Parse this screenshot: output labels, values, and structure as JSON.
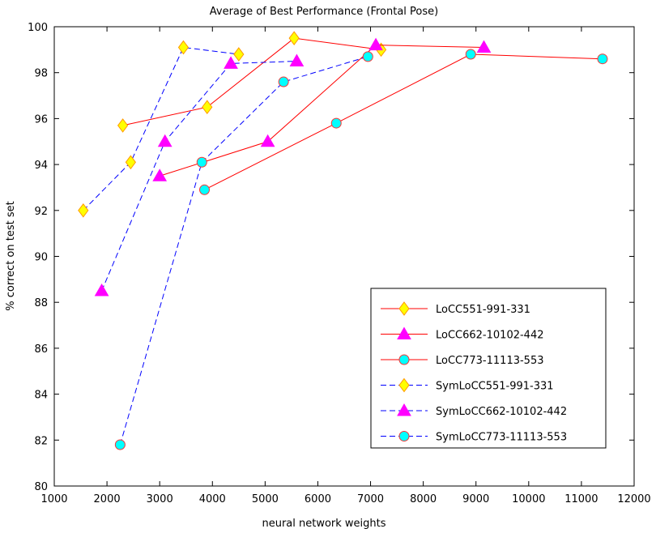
{
  "chart_data": {
    "type": "line",
    "title": "Average of Best Performance (Frontal Pose)",
    "xlabel": "neural network weights",
    "ylabel": "% correct on test set",
    "xlim": [
      1000,
      12000
    ],
    "ylim": [
      80,
      100
    ],
    "xticks": [
      1000,
      2000,
      3000,
      4000,
      5000,
      6000,
      7000,
      8000,
      9000,
      10000,
      11000,
      12000
    ],
    "yticks": [
      80,
      82,
      84,
      86,
      88,
      90,
      92,
      94,
      96,
      98,
      100
    ],
    "grid": false,
    "legend_position": "bottom-right",
    "series": [
      {
        "name": "LoCC551-991-331",
        "color": "#ff0000",
        "marker": "diamond",
        "marker_color": "#ffff00",
        "dashed": false,
        "points": [
          [
            2300,
            95.7
          ],
          [
            3900,
            96.5
          ],
          [
            5550,
            99.5
          ],
          [
            7200,
            99.0
          ]
        ]
      },
      {
        "name": "LoCC662-10102-442",
        "color": "#ff0000",
        "marker": "triangle",
        "marker_color": "#ff00ff",
        "dashed": false,
        "points": [
          [
            3000,
            93.5
          ],
          [
            5050,
            95.0
          ],
          [
            7100,
            99.2
          ],
          [
            9150,
            99.1
          ]
        ]
      },
      {
        "name": "LoCC773-11113-553",
        "color": "#ff0000",
        "marker": "circle",
        "marker_color": "#00ffff",
        "dashed": false,
        "points": [
          [
            3850,
            92.9
          ],
          [
            6350,
            95.8
          ],
          [
            8900,
            98.8
          ],
          [
            11400,
            98.6
          ]
        ]
      },
      {
        "name": "SymLoCC551-991-331",
        "color": "#0000ff",
        "marker": "diamond",
        "marker_color": "#ffff00",
        "dashed": true,
        "points": [
          [
            1550,
            92.0
          ],
          [
            2450,
            94.1
          ],
          [
            3450,
            99.1
          ],
          [
            4500,
            98.8
          ]
        ]
      },
      {
        "name": "SymLoCC662-10102-442",
        "color": "#0000ff",
        "marker": "triangle",
        "marker_color": "#ff00ff",
        "dashed": true,
        "points": [
          [
            1900,
            88.5
          ],
          [
            3100,
            95.0
          ],
          [
            4350,
            98.4
          ],
          [
            5600,
            98.5
          ]
        ]
      },
      {
        "name": "SymLoCC773-11113-553",
        "color": "#0000ff",
        "marker": "circle",
        "marker_color": "#00ffff",
        "dashed": true,
        "points": [
          [
            2250,
            81.8
          ],
          [
            3800,
            94.1
          ],
          [
            5350,
            97.6
          ],
          [
            6950,
            98.7
          ]
        ]
      }
    ]
  }
}
